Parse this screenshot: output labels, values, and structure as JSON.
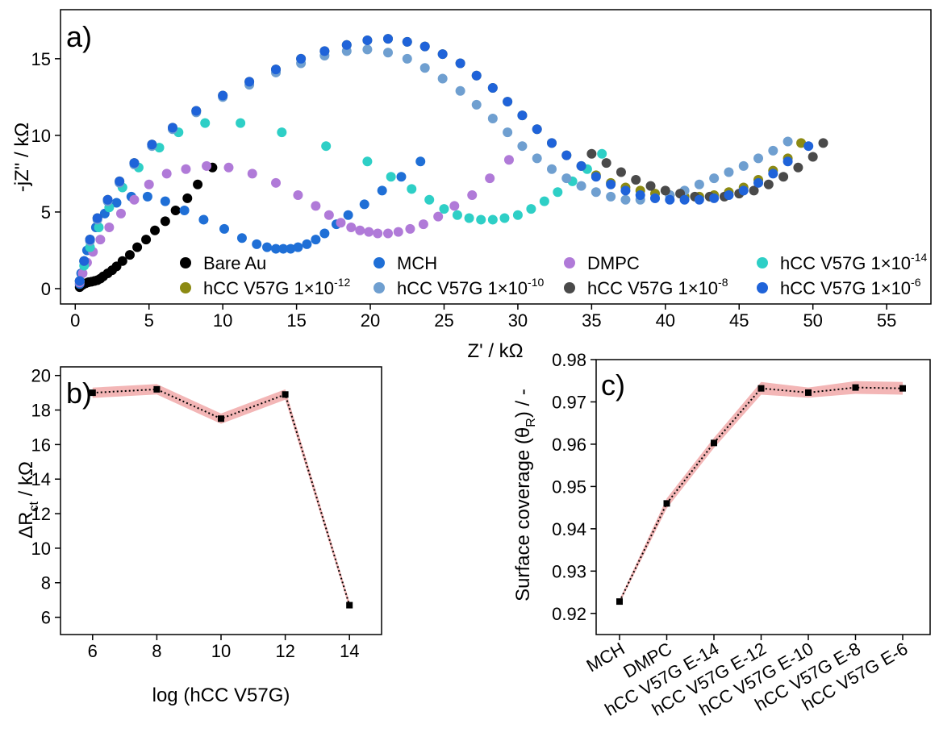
{
  "chart_data": [
    {
      "panel_label": "a)",
      "type": "scatter",
      "xlabel": "Z' / kΩ",
      "ylabel": "-jZ\" / kΩ",
      "xlim": [
        -1,
        58
      ],
      "ylim": [
        -1,
        18.2
      ],
      "xticks": [
        0,
        5,
        10,
        15,
        20,
        25,
        30,
        35,
        40,
        45,
        50,
        55
      ],
      "yticks": [
        0,
        5,
        10,
        15
      ],
      "legend_position": "bottom",
      "series": [
        {
          "name": "Bare Au",
          "color": "#000000",
          "x": [
            0.3,
            0.5,
            0.7,
            0.9,
            1.1,
            1.3,
            1.5,
            1.7,
            1.9,
            2.2,
            2.5,
            2.8,
            3.2,
            3.7,
            4.2,
            4.8,
            5.4,
            6.1,
            6.8,
            7.6,
            8.3,
            9.3
          ],
          "y": [
            0.1,
            0.25,
            0.35,
            0.42,
            0.45,
            0.5,
            0.55,
            0.65,
            0.8,
            1.0,
            1.2,
            1.45,
            1.8,
            2.2,
            2.7,
            3.2,
            3.8,
            4.4,
            5.1,
            5.9,
            6.8,
            7.9
          ]
        },
        {
          "name": "MCH",
          "color": "#1f6fd6",
          "x": [
            0.3,
            0.4,
            0.6,
            0.8,
            1.0,
            1.4,
            2.0,
            2.8,
            3.8,
            4.9,
            6.1,
            7.4,
            8.7,
            10.1,
            11.3,
            12.3,
            13.0,
            13.6,
            14.1,
            14.6,
            15.1,
            15.7,
            16.3,
            16.9,
            17.7,
            18.5,
            19.6,
            20.8,
            22.1,
            23.4
          ],
          "y": [
            0.3,
            1.0,
            1.8,
            2.5,
            3.2,
            4.0,
            4.9,
            5.6,
            6.0,
            6.0,
            5.7,
            5.1,
            4.5,
            3.9,
            3.3,
            2.9,
            2.7,
            2.6,
            2.6,
            2.6,
            2.7,
            2.9,
            3.2,
            3.6,
            4.2,
            4.8,
            5.5,
            6.4,
            7.3,
            8.3
          ]
        },
        {
          "name": "DMPC",
          "color": "#b07ad8",
          "x": [
            0.3,
            0.5,
            0.8,
            1.2,
            1.7,
            2.3,
            3.1,
            4.0,
            5.0,
            6.2,
            7.5,
            8.9,
            10.4,
            12.0,
            13.6,
            15.1,
            16.3,
            17.2,
            18.0,
            18.7,
            19.3,
            19.9,
            20.5,
            21.2,
            21.9,
            22.7,
            23.6,
            24.6,
            25.7,
            26.9,
            28.1,
            29.4
          ],
          "y": [
            0.4,
            1.0,
            1.7,
            2.4,
            3.2,
            4.0,
            4.9,
            5.8,
            6.8,
            7.5,
            7.8,
            8.0,
            7.9,
            7.5,
            6.9,
            6.1,
            5.4,
            4.8,
            4.3,
            4.0,
            3.8,
            3.7,
            3.6,
            3.6,
            3.7,
            3.9,
            4.2,
            4.7,
            5.4,
            6.1,
            7.2,
            8.4
          ]
        },
        {
          "name": "hCC V57G 1×10⁻¹⁴",
          "color": "#2ecfc6",
          "x": [
            0.3,
            0.6,
            1.0,
            1.6,
            2.3,
            3.2,
            4.3,
            5.7,
            7.0,
            8.8,
            11.2,
            14.0,
            17.0,
            19.8,
            21.4,
            22.8,
            24.0,
            25.0,
            25.9,
            26.7,
            27.5,
            28.3,
            29.1,
            30.0,
            30.9,
            31.8,
            32.7,
            33.7,
            34.7,
            35.7
          ],
          "y": [
            0.5,
            1.5,
            2.7,
            4.0,
            5.3,
            6.6,
            7.9,
            9.2,
            10.2,
            10.8,
            10.8,
            10.2,
            9.3,
            8.3,
            7.3,
            6.5,
            5.8,
            5.2,
            4.8,
            4.6,
            4.5,
            4.5,
            4.6,
            4.8,
            5.2,
            5.7,
            6.3,
            7.0,
            7.8,
            8.8
          ]
        },
        {
          "name": "hCC V57G 1×10⁻¹²",
          "color": "#8c8a13",
          "x": [
            0.3,
            0.6,
            1.0,
            1.5,
            2.2,
            3.0,
            4.0,
            5.2,
            6.6,
            8.2,
            10.0,
            11.8,
            13.6,
            15.3,
            16.9,
            18.4,
            19.8,
            21.2,
            22.5,
            23.7,
            24.9,
            26.1,
            27.2,
            28.3,
            29.3,
            30.3,
            31.3,
            32.3,
            33.3,
            34.3,
            35.3,
            36.3,
            37.3,
            38.3,
            39.3,
            40.3,
            41.3,
            42.3,
            43.3,
            44.3,
            45.3,
            46.3,
            47.3,
            48.3,
            49.2
          ],
          "y": [
            0.5,
            1.8,
            3.2,
            4.6,
            5.8,
            7.0,
            8.2,
            9.4,
            10.5,
            11.6,
            12.6,
            13.5,
            14.3,
            15.0,
            15.5,
            15.9,
            16.2,
            16.3,
            16.1,
            15.8,
            15.3,
            14.7,
            13.9,
            13.1,
            12.2,
            11.3,
            10.4,
            9.5,
            8.7,
            8.0,
            7.4,
            6.9,
            6.6,
            6.4,
            6.2,
            6.1,
            6.0,
            6.0,
            6.1,
            6.3,
            6.6,
            7.1,
            7.7,
            8.5,
            9.5
          ]
        },
        {
          "name": "hCC V57G 1×10⁻¹⁰",
          "color": "#6f9fd0",
          "x": [
            0.3,
            0.6,
            1.0,
            1.5,
            2.2,
            3.0,
            4.0,
            5.2,
            6.6,
            8.2,
            10.0,
            11.8,
            13.6,
            15.3,
            16.9,
            18.4,
            19.8,
            21.2,
            22.5,
            23.7,
            24.9,
            26.1,
            27.2,
            28.3,
            29.3,
            30.3,
            31.3,
            32.3,
            33.3,
            34.3,
            35.3,
            36.3,
            37.3,
            38.3,
            39.3,
            40.3,
            41.3,
            42.3,
            43.3,
            44.3,
            45.3,
            46.3,
            47.3,
            48.3
          ],
          "y": [
            0.5,
            1.8,
            3.1,
            4.5,
            5.7,
            6.9,
            8.1,
            9.3,
            10.4,
            11.5,
            12.5,
            13.3,
            14.1,
            14.7,
            15.2,
            15.5,
            15.6,
            15.4,
            15.0,
            14.4,
            13.7,
            12.9,
            12.0,
            11.1,
            10.2,
            9.3,
            8.5,
            7.8,
            7.2,
            6.7,
            6.3,
            6.0,
            5.8,
            5.8,
            5.9,
            6.1,
            6.4,
            6.8,
            7.2,
            7.6,
            8.0,
            8.5,
            9.0,
            9.6
          ]
        },
        {
          "name": "hCC V57G 1×10⁻⁸",
          "color": "#4a4a4a",
          "x": [
            35.0,
            36.0,
            37.0,
            38.0,
            39.0,
            40.0,
            41.0,
            42.0,
            43.0,
            44.0,
            45.0,
            46.0,
            47.0,
            48.0,
            49.0,
            50.0,
            50.7
          ],
          "y": [
            8.8,
            8.2,
            7.6,
            7.1,
            6.7,
            6.4,
            6.2,
            6.0,
            6.0,
            6.0,
            6.2,
            6.4,
            6.8,
            7.3,
            7.9,
            8.6,
            9.5
          ]
        },
        {
          "name": "hCC V57G 1×10⁻⁶",
          "color": "#1f63d9",
          "x": [
            0.3,
            0.6,
            1.0,
            1.5,
            2.2,
            3.0,
            4.0,
            5.2,
            6.6,
            8.2,
            10.0,
            11.8,
            13.6,
            15.3,
            16.9,
            18.4,
            19.8,
            21.2,
            22.5,
            23.7,
            24.9,
            26.1,
            27.2,
            28.3,
            29.3,
            30.3,
            31.3,
            32.3,
            33.3,
            34.3,
            35.3,
            36.3,
            37.3,
            38.3,
            39.3,
            40.3,
            41.3,
            42.3,
            43.3,
            44.3,
            45.3,
            46.3,
            47.3,
            48.3,
            49.7
          ],
          "y": [
            0.5,
            1.8,
            3.2,
            4.6,
            5.8,
            7.0,
            8.2,
            9.4,
            10.5,
            11.6,
            12.6,
            13.5,
            14.3,
            15.0,
            15.5,
            15.9,
            16.2,
            16.3,
            16.1,
            15.8,
            15.3,
            14.7,
            13.9,
            13.1,
            12.2,
            11.3,
            10.4,
            9.5,
            8.7,
            8.0,
            7.3,
            6.8,
            6.4,
            6.1,
            5.9,
            5.8,
            5.8,
            5.8,
            5.9,
            6.1,
            6.4,
            6.9,
            7.5,
            8.3,
            9.3
          ]
        }
      ],
      "legend": [
        {
          "base": "Bare Au",
          "sup": ""
        },
        {
          "base": "MCH",
          "sup": ""
        },
        {
          "base": "DMPC",
          "sup": ""
        },
        {
          "base": "hCC V57G 1×10",
          "sup": "-14"
        },
        {
          "base": "hCC V57G 1×10",
          "sup": "-12"
        },
        {
          "base": "hCC V57G 1×10",
          "sup": "-10"
        },
        {
          "base": "hCC V57G 1×10",
          "sup": "-8"
        },
        {
          "base": "hCC V57G 1×10",
          "sup": "-6"
        }
      ]
    },
    {
      "panel_label": "b)",
      "type": "line",
      "xlabel": "log (hCC V57G)",
      "ylabel_parts": {
        "pre": "ΔR",
        "sub": "ct",
        "post": " / kΩ"
      },
      "xlim": [
        5,
        15
      ],
      "ylim": [
        5,
        20.5
      ],
      "xticks": [
        6,
        8,
        10,
        12,
        14
      ],
      "yticks": [
        6,
        8,
        10,
        12,
        14,
        16,
        18,
        20
      ],
      "band_color": "#f3b6b6",
      "x": [
        6,
        8,
        10,
        12,
        14
      ],
      "y": [
        19.0,
        19.2,
        17.5,
        18.9,
        6.7
      ],
      "band": [
        0.3,
        0.3,
        0.3,
        0.3,
        0.2
      ]
    },
    {
      "panel_label": "c)",
      "type": "line",
      "ylabel_parts": {
        "pre": "Surface coverage (θ",
        "sub": "R",
        "post": ") / -"
      },
      "categories": [
        "MCH",
        "DMPC",
        "hCC V57G E-14",
        "hCC V57G E-12",
        "hCC V57G E-10",
        "hCC V57G E-8",
        "hCC V57G E-6"
      ],
      "ylim": [
        0.915,
        0.98
      ],
      "yticks": [
        0.92,
        0.93,
        0.94,
        0.95,
        0.96,
        0.97,
        0.98
      ],
      "band_color": "#f3b6b6",
      "values": [
        0.9228,
        0.946,
        0.9603,
        0.9732,
        0.9722,
        0.9734,
        0.9732
      ],
      "band": [
        0.0005,
        0.0012,
        0.0012,
        0.0015,
        0.0012,
        0.0015,
        0.0015
      ]
    }
  ]
}
